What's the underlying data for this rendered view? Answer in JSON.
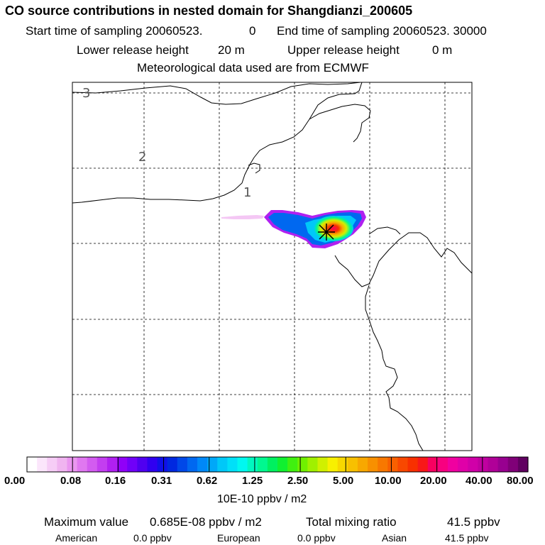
{
  "header": {
    "title": "CO  source contributions in nested domain for Shangdianzi_200605",
    "start_label": "Start time of sampling 20060523.",
    "start_time": "0",
    "end_label": "End time of sampling 20060523. 30000",
    "lower_label": "Lower release height",
    "lower_value": "20 m",
    "upper_label": "Upper release height",
    "upper_value": "0 m",
    "met_line": "Meteorological data used are from ECMWF"
  },
  "map": {
    "contour_labels": [
      "3",
      "2",
      "1"
    ],
    "station_marker": "station-star"
  },
  "colorbar": {
    "colors": [
      "#ffffff",
      "#fbe6fb",
      "#f6cdf6",
      "#f0b4f0",
      "#ea96f0",
      "#e078f0",
      "#d35cf0",
      "#c33ef0",
      "#b020f0",
      "#9000f8",
      "#7000f8",
      "#5000f0",
      "#3000f0",
      "#1010e8",
      "#0028e0",
      "#0048e8",
      "#0068f0",
      "#0088f8",
      "#00a8f8",
      "#00c8f8",
      "#00e0f8",
      "#00f8f0",
      "#00f8c0",
      "#00f890",
      "#00f060",
      "#10f030",
      "#40f010",
      "#70f000",
      "#a0f000",
      "#d0f000",
      "#f8f000",
      "#f8d800",
      "#f8c000",
      "#f8a800",
      "#f89000",
      "#f87800",
      "#f86000",
      "#f84800",
      "#f83000",
      "#f81818",
      "#f80060",
      "#f80080",
      "#f000a0",
      "#e000a8",
      "#d000a8",
      "#c000a0",
      "#b00098",
      "#980090",
      "#800078",
      "#600060"
    ],
    "tick_labels": [
      "0.00",
      "0.08",
      "0.16",
      "0.31",
      "0.62",
      "1.25",
      "2.50",
      "5.00",
      "10.00",
      "20.00",
      "40.00",
      "80.00"
    ],
    "units": "10E-10 ppbv / m2"
  },
  "summary": {
    "max_label": "Maximum value",
    "max_value": "0.685E-08 ppbv / m2",
    "total_label": "Total mixing ratio",
    "total_value": "41.5 ppbv",
    "american_label": "American",
    "american_value": "0.0 ppbv",
    "european_label": "European",
    "european_value": "0.0 ppbv",
    "asian_label": "Asian",
    "asian_value": "41.5 ppbv"
  }
}
